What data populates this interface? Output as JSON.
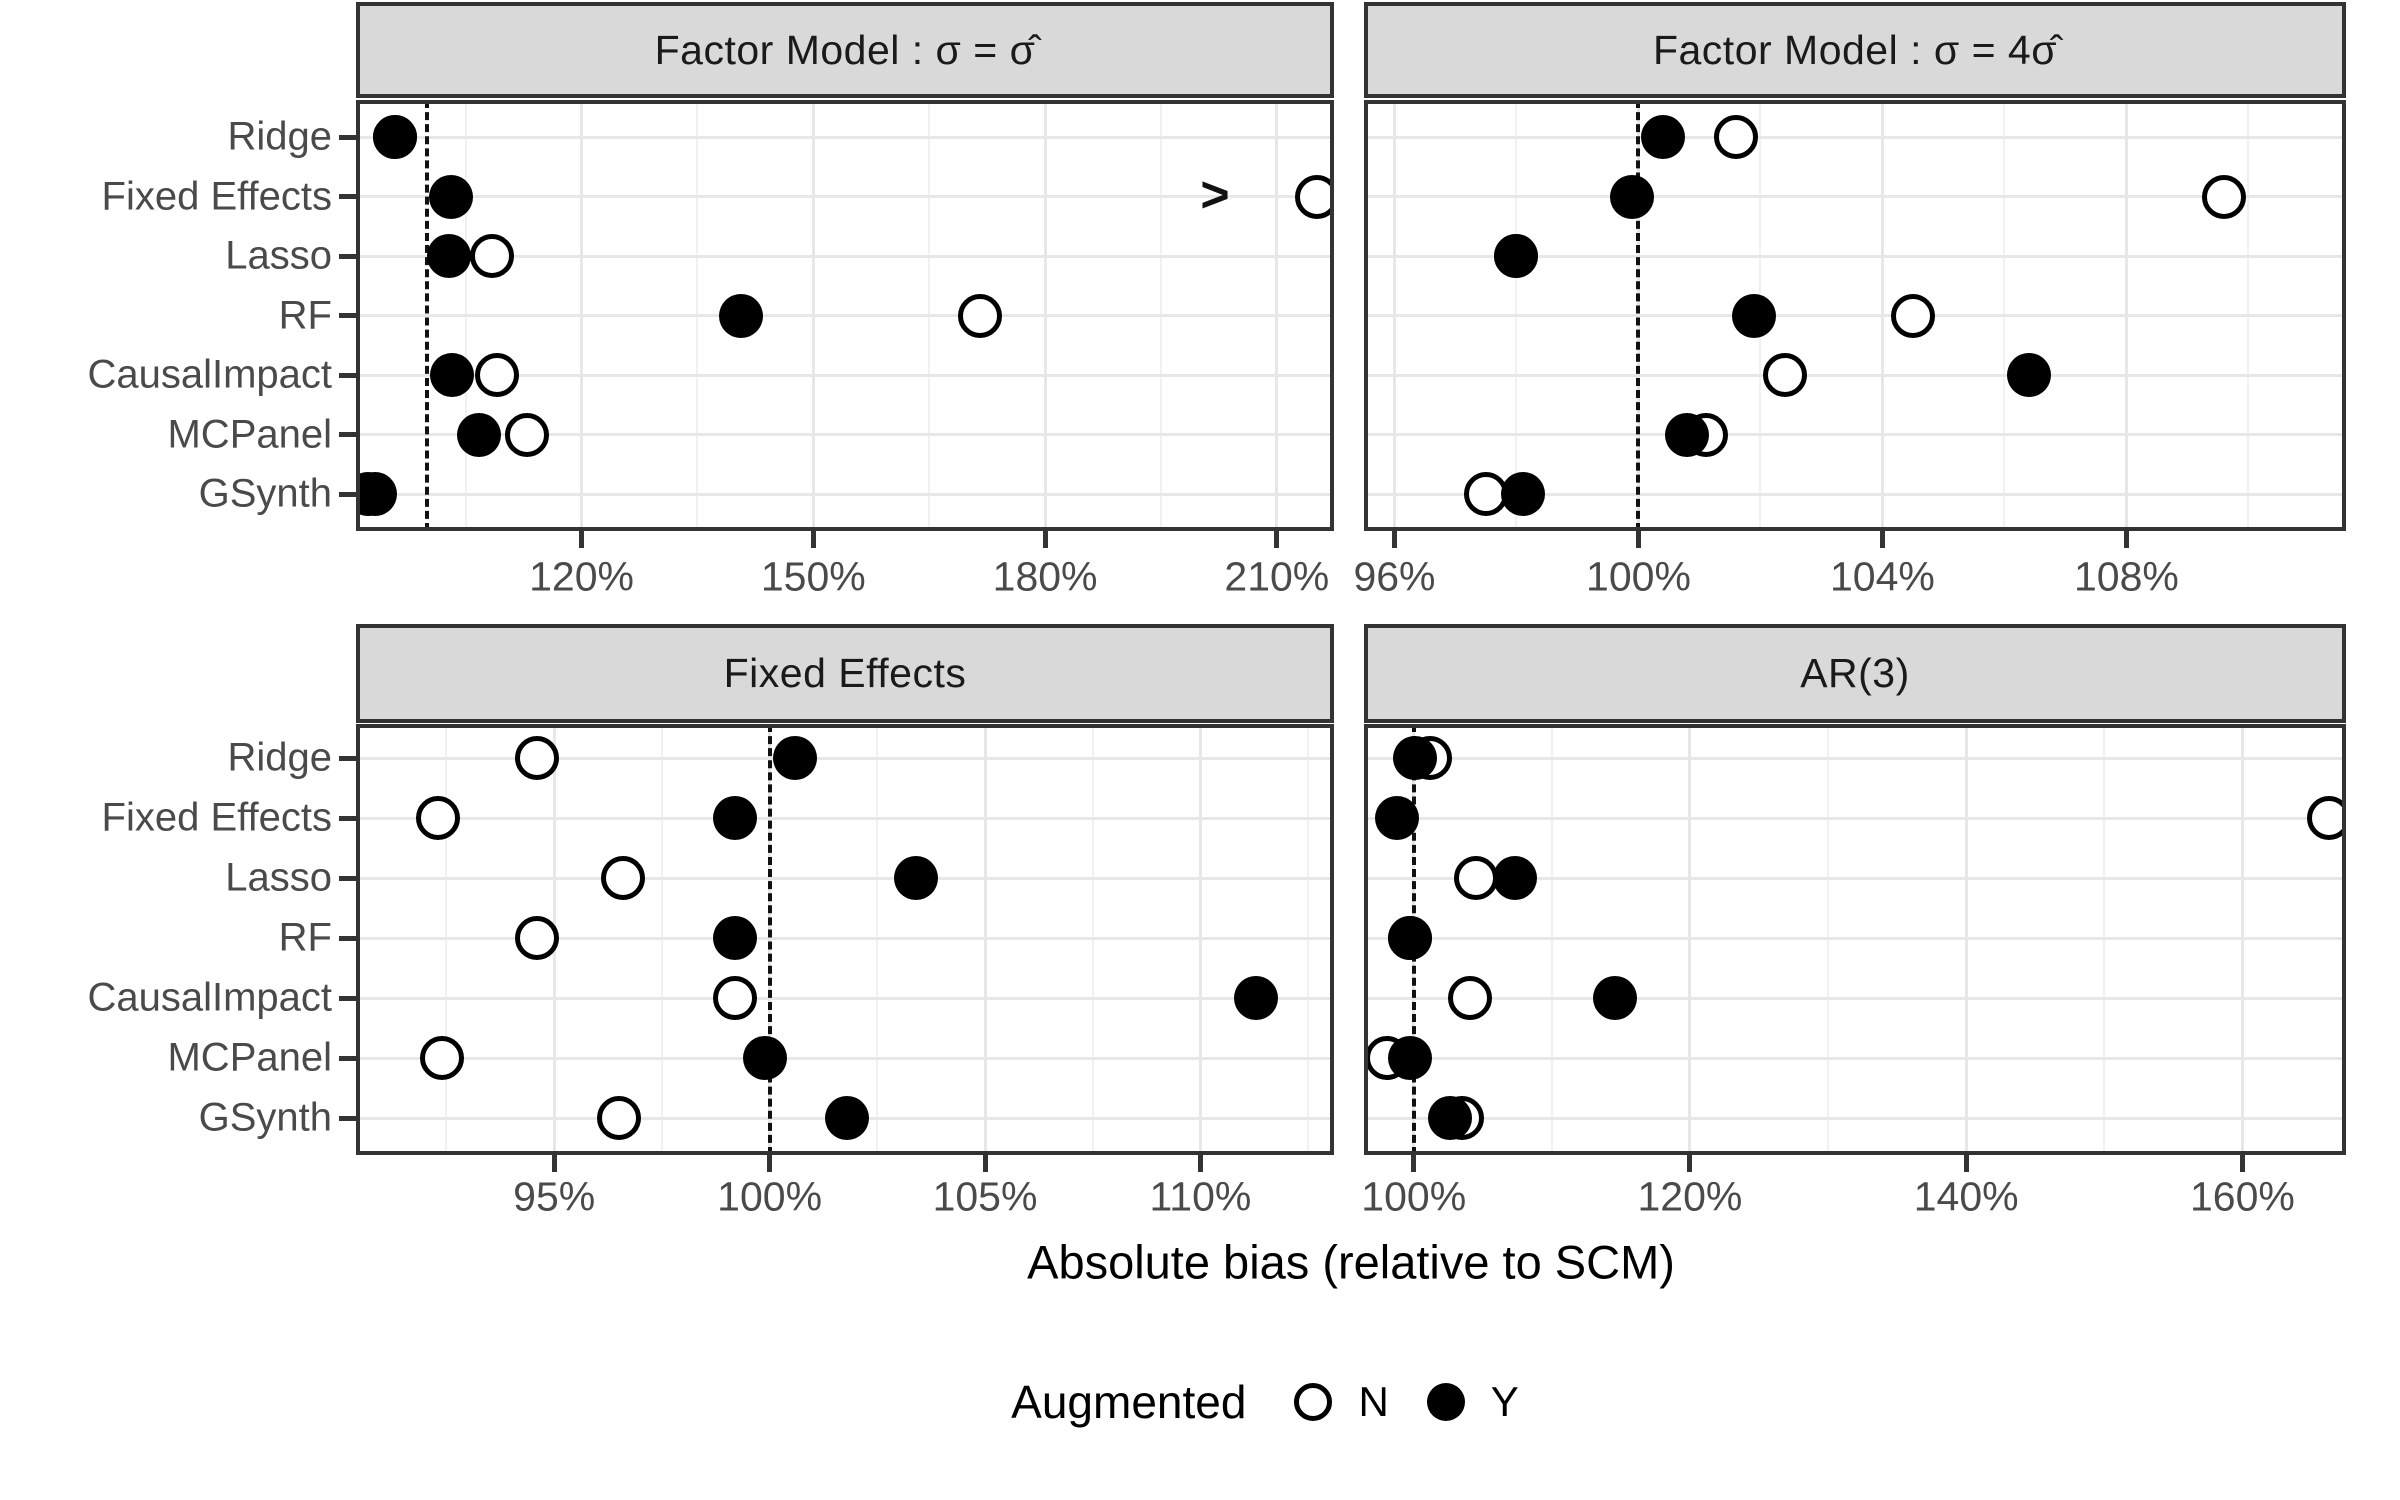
{
  "chart_data": {
    "type": "scatter",
    "description": "Faceted dot plot of absolute bias relative to SCM for seven estimators under four outcome models, by augmentation status",
    "categories": [
      "Ridge",
      "Fixed Effects",
      "Lasso",
      "RF",
      "CausalImpact",
      "MCPanel",
      "GSynth"
    ],
    "xlabel": "Absolute bias (relative to SCM)",
    "grid": true,
    "reference_line_pct": 100,
    "legend": {
      "title": "Augmented",
      "position": "bottom",
      "items": [
        {
          "label": "N",
          "marker": "open-circle"
        },
        {
          "label": "Y",
          "marker": "filled-circle"
        }
      ]
    },
    "marker_colors": {
      "open_fill": "#ffffff",
      "stroke": "#000000",
      "filled_fill": "#000000"
    },
    "facets": [
      {
        "title": "Factor Model :  σ = σ̂",
        "grid_pos": {
          "row": 0,
          "col": 0
        },
        "xlim_pct": [
          90.8,
          217.4
        ],
        "ticks_pct": [
          120,
          150,
          180,
          210
        ],
        "tick_labels": [
          "120%",
          "150%",
          "180%",
          "210%"
        ],
        "series": [
          {
            "name": "N",
            "marker": "open",
            "values_pct": [
              95.8,
              215.2,
              108.4,
              171.6,
              109.0,
              113.0,
              92.3
            ]
          },
          {
            "name": "Y",
            "marker": "filled",
            "values_pct": [
              95.8,
              103.1,
              102.9,
              140.6,
              103.2,
              106.7,
              93.2
            ]
          }
        ],
        "annotations": [
          {
            "type": "clipped-point-arrow",
            "text": ">",
            "category": "Fixed Effects",
            "value_pct": 202
          }
        ]
      },
      {
        "title": "Factor Model :  σ = 4σ̂",
        "grid_pos": {
          "row": 0,
          "col": 1
        },
        "xlim_pct": [
          95.5,
          111.6
        ],
        "ticks_pct": [
          96,
          100,
          104,
          108
        ],
        "tick_labels": [
          "96%",
          "100%",
          "104%",
          "108%"
        ],
        "series": [
          {
            "name": "N",
            "marker": "open",
            "values_pct": [
              101.6,
              109.6,
              98.0,
              104.5,
              102.4,
              101.1,
              97.5
            ]
          },
          {
            "name": "Y",
            "marker": "filled",
            "values_pct": [
              100.4,
              99.9,
              98.0,
              101.9,
              106.4,
              100.8,
              98.1
            ]
          }
        ],
        "annotations": []
      },
      {
        "title": "Fixed Effects",
        "grid_pos": {
          "row": 1,
          "col": 0
        },
        "xlim_pct": [
          90.4,
          113.1
        ],
        "ticks_pct": [
          95,
          100,
          105,
          110
        ],
        "tick_labels": [
          "95%",
          "100%",
          "105%",
          "110%"
        ],
        "series": [
          {
            "name": "N",
            "marker": "open",
            "values_pct": [
              94.6,
              92.3,
              96.6,
              94.6,
              99.2,
              92.4,
              96.5
            ]
          },
          {
            "name": "Y",
            "marker": "filled",
            "values_pct": [
              100.6,
              99.2,
              103.4,
              99.2,
              111.3,
              99.9,
              101.8
            ]
          }
        ],
        "annotations": []
      },
      {
        "title": "AR(3)",
        "grid_pos": {
          "row": 1,
          "col": 1
        },
        "xlim_pct": [
          96.4,
          167.5
        ],
        "ticks_pct": [
          100,
          120,
          140,
          160
        ],
        "tick_labels": [
          "100%",
          "120%",
          "140%",
          "160%"
        ],
        "series": [
          {
            "name": "N",
            "marker": "open",
            "values_pct": [
              101.2,
              166.3,
              104.5,
              99.7,
              104.1,
              98.1,
              103.5
            ]
          },
          {
            "name": "Y",
            "marker": "filled",
            "values_pct": [
              100.1,
              98.8,
              107.3,
              99.7,
              114.6,
              99.7,
              102.6
            ]
          }
        ],
        "annotations": []
      }
    ]
  }
}
